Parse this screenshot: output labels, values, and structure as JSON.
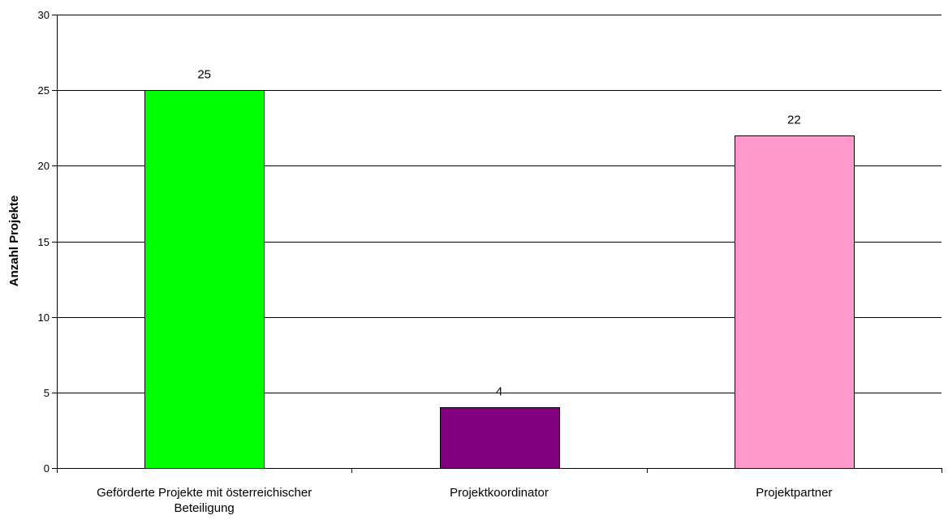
{
  "chart_data": {
    "type": "bar",
    "title": "",
    "xlabel": "",
    "ylabel": "Anzahl Projekte",
    "categories": [
      [
        "Geförderte Projekte mit österreichischer",
        "Beteiligung"
      ],
      [
        "Projektkoordinator"
      ],
      [
        "Projektpartner"
      ]
    ],
    "values": [
      25,
      4,
      22
    ],
    "data_labels": [
      "25",
      "4",
      "22"
    ],
    "colors": [
      "#00FF00",
      "#800080",
      "#FF99CC"
    ],
    "ylim": [
      0,
      30
    ],
    "yticks": [
      0,
      5,
      10,
      15,
      20,
      25,
      30
    ],
    "ytick_labels": [
      "0",
      "5",
      "10",
      "15",
      "20",
      "25",
      "30"
    ],
    "grid": true,
    "legend": "none"
  }
}
